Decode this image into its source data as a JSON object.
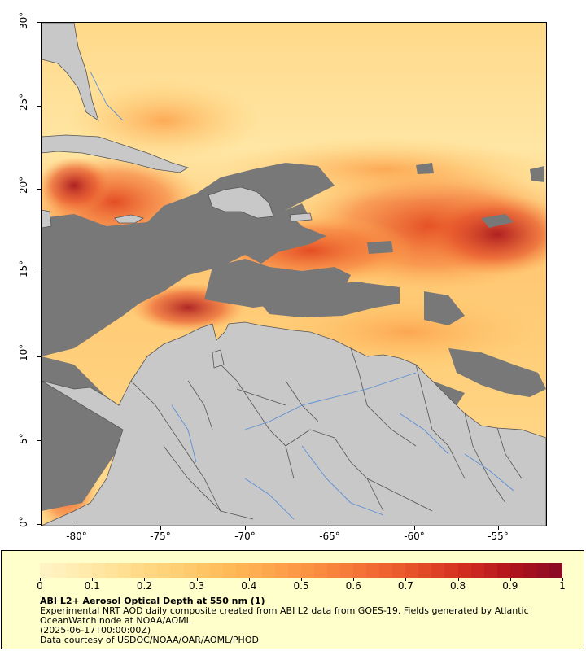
{
  "map": {
    "y_ticks": [
      "0°",
      "5°",
      "10°",
      "15°",
      "20°",
      "25°",
      "30°"
    ],
    "x_ticks": [
      "-80°",
      "-75°",
      "-70°",
      "-65°",
      "-60°",
      "-55°"
    ],
    "colors": {
      "land": "#c8c8c8",
      "no_data": "#787878",
      "borders": "#555555",
      "rivers": "#5b8fd6",
      "frame": "#000000"
    }
  },
  "legend": {
    "ticks": [
      "0",
      "0.1",
      "0.2",
      "0.3",
      "0.4",
      "0.5",
      "0.6",
      "0.7",
      "0.8",
      "0.9",
      "1"
    ],
    "colors": [
      "#fff3c4",
      "#ffe8a6",
      "#ffdb88",
      "#ffcc6e",
      "#ffb957",
      "#fda24a",
      "#f98a3e",
      "#f26d33",
      "#e54f29",
      "#d32f20",
      "#b3151c",
      "#8e0b24"
    ],
    "title": "ABI L2+ Aerosol Optical Depth at 550 nm (1)",
    "line1": "Experimental NRT AOD daily composite created from ABI L2 data from GOES-19. Fields generated by Atlantic",
    "line2": "OceanWatch node at NOAA/AOML",
    "line3": "(2025-06-17T00:00:00Z)",
    "line4": "Data courtesy of USDOC/NOAA/OAR/AOML/PHOD"
  }
}
